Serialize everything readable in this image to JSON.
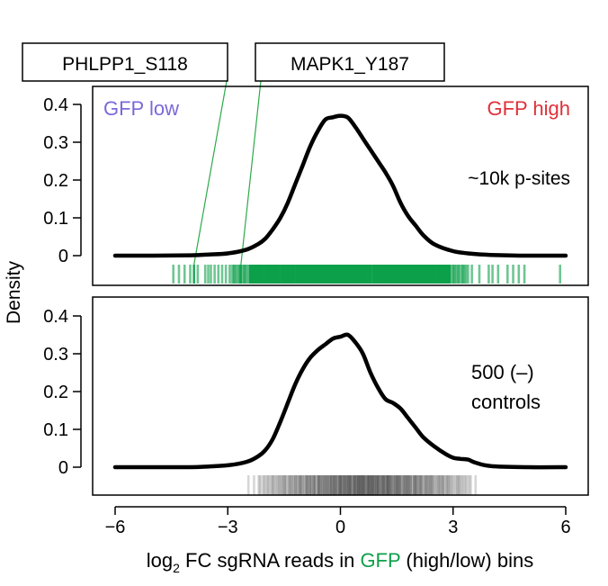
{
  "chart_data": {
    "type": "density",
    "x_range": [
      -6,
      6
    ],
    "x_ticks": [
      -6,
      -3,
      0,
      3,
      6
    ],
    "x_tick_labels": [
      "−6",
      "−3",
      "0",
      "3",
      "6"
    ],
    "xlabel_prefix": "log",
    "xlabel_sub": "2",
    "xlabel_middle": " FC sgRNA reads in ",
    "xlabel_highlight": "GFP",
    "xlabel_suffix": " (high/low) bins",
    "ylabel": "Density",
    "y_range": [
      -0.065,
      0.44
    ],
    "y_ticks": [
      0,
      0.1,
      0.2,
      0.3,
      0.4
    ],
    "y_tick_labels": [
      "0",
      "0.1",
      "0.2",
      "0.3",
      "0.4"
    ],
    "colors": {
      "curve": "#000000",
      "low": "#7B68D9",
      "high": "#E0303A",
      "highlight": "#0DA04A",
      "rug_top": "#0DA04A",
      "rug_bottom": "#555555",
      "callout_line": "#2DAA4A"
    },
    "panels": [
      {
        "id": "p-sites",
        "label_low": "GFP low",
        "label_high": "GFP high",
        "annotation_lines": [
          "~10k p-sites"
        ],
        "density": {
          "x": [
            -6,
            -5,
            -4,
            -3.5,
            -3,
            -2.5,
            -2.2,
            -2,
            -1.8,
            -1.6,
            -1.4,
            -1.2,
            -1,
            -0.8,
            -0.6,
            -0.4,
            -0.2,
            0,
            0.2,
            0.4,
            0.6,
            0.8,
            1,
            1.2,
            1.4,
            1.6,
            1.8,
            2,
            2.2,
            2.5,
            3,
            3.5,
            4,
            5,
            6
          ],
          "y": [
            0,
            0,
            0.001,
            0.003,
            0.006,
            0.016,
            0.03,
            0.045,
            0.07,
            0.1,
            0.14,
            0.19,
            0.24,
            0.29,
            0.33,
            0.36,
            0.366,
            0.37,
            0.365,
            0.34,
            0.31,
            0.28,
            0.25,
            0.22,
            0.185,
            0.14,
            0.105,
            0.08,
            0.055,
            0.03,
            0.012,
            0.005,
            0.002,
            0,
            0
          ]
        },
        "rug": {
          "sparse": [
            -4.45,
            -4.3,
            -4.15,
            -4.0,
            -3.8,
            -3.6,
            -3.52,
            -3.45,
            -3.35,
            -3.25,
            -3.15,
            -3.05,
            -2.95,
            3.5,
            3.7,
            3.95,
            4.05,
            4.2,
            4.45,
            4.6,
            4.75,
            4.9,
            5.85
          ],
          "dense_range": [
            -2.9,
            3.4
          ]
        },
        "callouts": [
          {
            "label": "PHLPP1_S118",
            "x": -3.9
          },
          {
            "label": "MAPK1_Y187",
            "x": -2.65
          }
        ]
      },
      {
        "id": "controls",
        "annotation_lines": [
          "500 (–)",
          "controls"
        ],
        "density": {
          "x": [
            -6,
            -5,
            -4,
            -3.5,
            -3,
            -2.5,
            -2.2,
            -2,
            -1.8,
            -1.6,
            -1.4,
            -1.2,
            -1,
            -0.8,
            -0.6,
            -0.4,
            -0.2,
            0,
            0.2,
            0.4,
            0.6,
            0.8,
            1,
            1.2,
            1.4,
            1.6,
            1.8,
            2,
            2.2,
            2.5,
            2.8,
            3,
            3.2,
            3.4,
            3.6,
            4,
            5,
            6
          ],
          "y": [
            0,
            0,
            0,
            0.002,
            0.005,
            0.014,
            0.028,
            0.045,
            0.075,
            0.12,
            0.17,
            0.22,
            0.26,
            0.29,
            0.31,
            0.325,
            0.34,
            0.345,
            0.35,
            0.33,
            0.3,
            0.25,
            0.21,
            0.18,
            0.17,
            0.155,
            0.13,
            0.105,
            0.08,
            0.055,
            0.035,
            0.025,
            0.022,
            0.02,
            0.012,
            0.003,
            0,
            0
          ]
        },
        "rug": {
          "sparse": [
            -2.45,
            -2.3,
            -2.15,
            3.6
          ],
          "dense_range": [
            -2.2,
            3.5
          ]
        }
      }
    ]
  }
}
